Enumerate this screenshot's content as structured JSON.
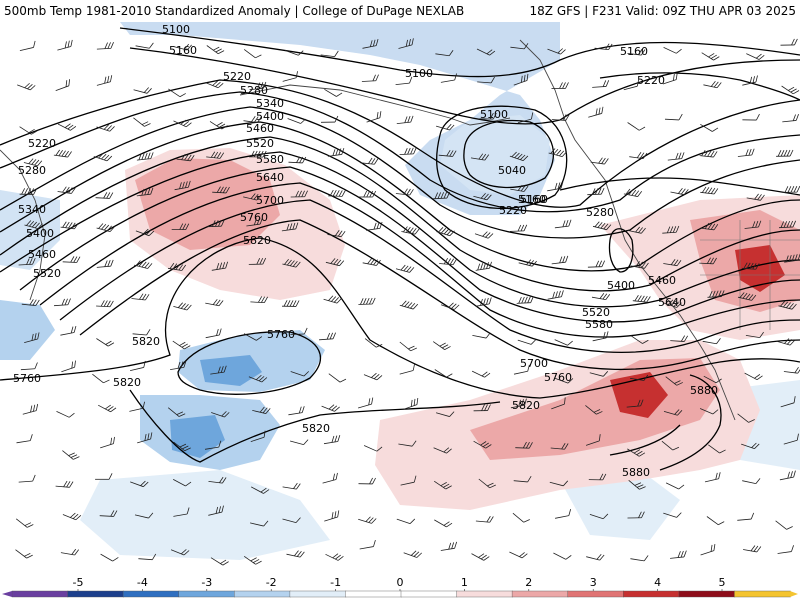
{
  "title": {
    "left": "500mb Temp 1981-2010 Standardized Anomaly | College of DuPage NEXLAB",
    "right": "18Z GFS | F231 Valid: 09Z THU APR 03 2025"
  },
  "contours": [
    {
      "id": "c1",
      "label": "5100"
    },
    {
      "id": "c2",
      "label": "5160"
    },
    {
      "id": "c3",
      "label": "5220"
    },
    {
      "id": "c4",
      "label": "5280"
    },
    {
      "id": "c5",
      "label": "5340"
    },
    {
      "id": "c6",
      "label": "5400"
    },
    {
      "id": "c7",
      "label": "5460"
    },
    {
      "id": "c8",
      "label": "5520"
    },
    {
      "id": "c9",
      "label": "5580"
    },
    {
      "id": "c10",
      "label": "5640"
    },
    {
      "id": "c11",
      "label": "5700"
    },
    {
      "id": "c12",
      "label": "5760"
    },
    {
      "id": "c13",
      "label": "5820"
    },
    {
      "id": "c14",
      "label": "5880"
    },
    {
      "id": "c15",
      "label": "5040"
    }
  ],
  "contour_labels": [
    {
      "text": "5100"
    },
    {
      "text": "5160"
    },
    {
      "text": "5220"
    },
    {
      "text": "5280"
    },
    {
      "text": "5340"
    },
    {
      "text": "5400"
    },
    {
      "text": "5460"
    },
    {
      "text": "5520"
    },
    {
      "text": "5580"
    },
    {
      "text": "5640"
    },
    {
      "text": "5700"
    },
    {
      "text": "5760"
    },
    {
      "text": "5820"
    },
    {
      "text": "5100"
    },
    {
      "text": "5160"
    },
    {
      "text": "5220"
    },
    {
      "text": "5280"
    },
    {
      "text": "5340"
    },
    {
      "text": "5400"
    },
    {
      "text": "5460"
    },
    {
      "text": "5520"
    },
    {
      "text": "5100"
    },
    {
      "text": "5040"
    },
    {
      "text": "5160"
    },
    {
      "text": "5220"
    },
    {
      "text": "5280"
    },
    {
      "text": "5400"
    },
    {
      "text": "5460"
    },
    {
      "text": "5520"
    },
    {
      "text": "5580"
    },
    {
      "text": "5640"
    },
    {
      "text": "5700"
    },
    {
      "text": "5760"
    },
    {
      "text": "5820"
    },
    {
      "text": "5820"
    },
    {
      "text": "5760"
    },
    {
      "text": "5820"
    },
    {
      "text": "5820"
    },
    {
      "text": "5760"
    },
    {
      "text": "5880"
    },
    {
      "text": "5880"
    },
    {
      "text": "5160"
    },
    {
      "text": "5220"
    }
  ],
  "legend": {
    "labels": [
      "-5",
      "-4",
      "-3",
      "-2",
      "-1",
      "0",
      "1",
      "2",
      "3",
      "4",
      "5"
    ],
    "colors": [
      "#6a3fa0",
      "#1c3f8c",
      "#2f6fc0",
      "#6ea6dc",
      "#b4d2ee",
      "#e2eef8",
      "#ffffff",
      "#ffffff",
      "#f7dcdc",
      "#eca8a8",
      "#e07474",
      "#c63030",
      "#8e0d1a",
      "#f4c430"
    ]
  }
}
